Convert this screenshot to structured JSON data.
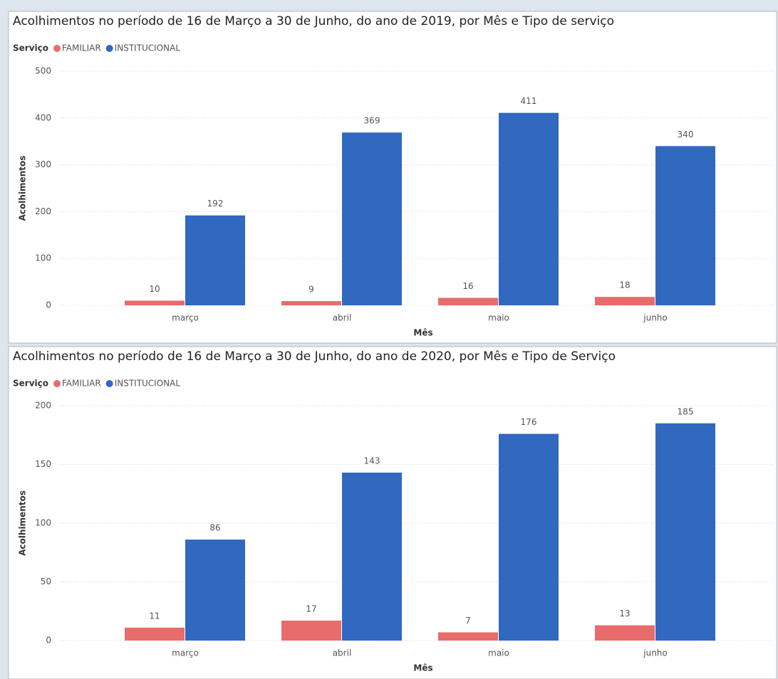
{
  "chart_data": [
    {
      "type": "bar",
      "title": "Acolhimentos no período de 16 de Março a 30 de Junho, do ano de 2019, por Mês e Tipo de serviço",
      "legend_title": "Serviço",
      "x_label": "Mês",
      "y_label": "Acolhimentos",
      "categories": [
        "março",
        "abril",
        "maio",
        "junho"
      ],
      "series": [
        {
          "name": "FAMILIAR",
          "color": "#e86c6c",
          "values": [
            10,
            9,
            16,
            18
          ]
        },
        {
          "name": "INSTITUCIONAL",
          "color": "#3168c0",
          "values": [
            192,
            369,
            411,
            340
          ]
        }
      ],
      "ylim": [
        0,
        500
      ],
      "yticks": [
        0,
        100,
        200,
        300,
        400,
        500
      ],
      "grid": true
    },
    {
      "type": "bar",
      "title": "Acolhimentos no período de 16 de Março a 30 de Junho, do ano de 2020, por Mês e Tipo de Serviço",
      "legend_title": "Serviço",
      "x_label": "Mês",
      "y_label": "Acolhimentos",
      "categories": [
        "março",
        "abril",
        "maio",
        "junho"
      ],
      "series": [
        {
          "name": "FAMILIAR",
          "color": "#e86c6c",
          "values": [
            11,
            17,
            7,
            13
          ]
        },
        {
          "name": "INSTITUCIONAL",
          "color": "#3168c0",
          "values": [
            86,
            143,
            176,
            185
          ]
        }
      ],
      "ylim": [
        0,
        200
      ],
      "yticks": [
        0,
        50,
        100,
        150,
        200
      ],
      "grid": true
    }
  ]
}
